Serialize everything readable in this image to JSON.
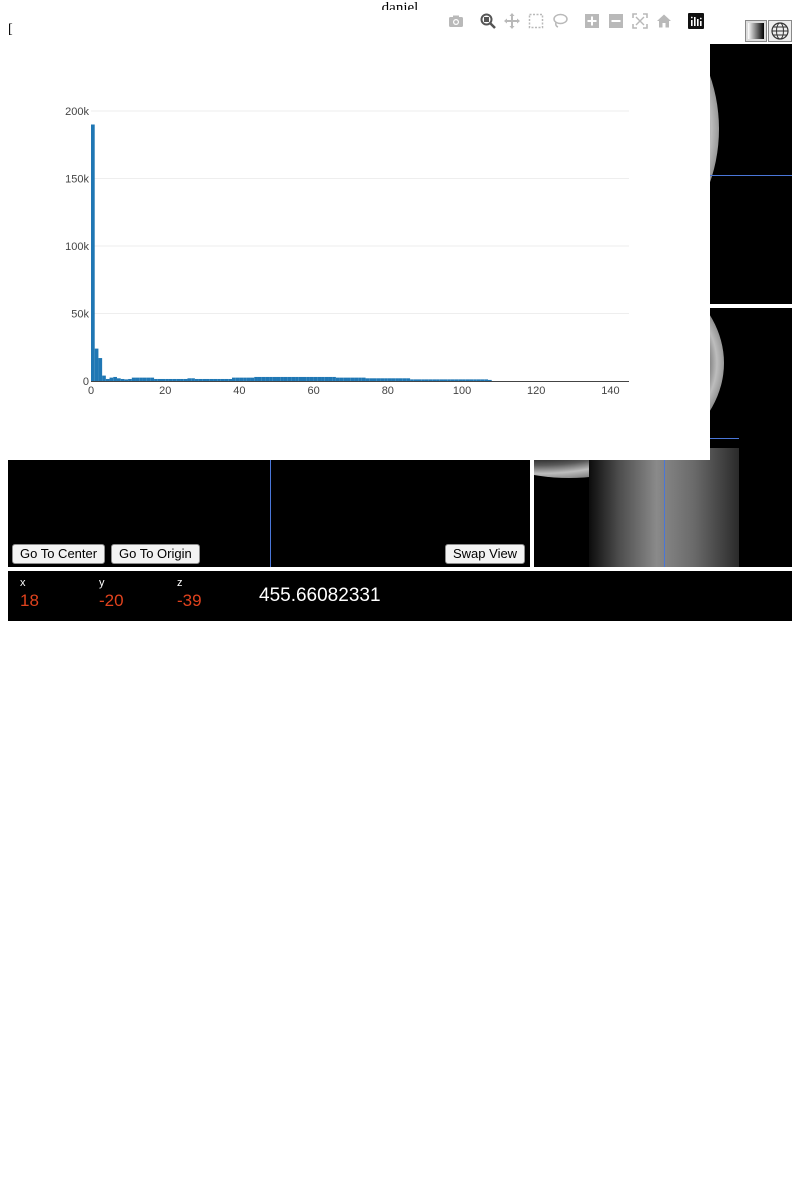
{
  "page": {
    "title": "daniel",
    "stray_mark": "["
  },
  "toolbar": {
    "icons": [
      "camera-icon",
      "zoom-icon",
      "pan-icon",
      "box-select-icon",
      "lasso-select-icon",
      "zoom-in-icon",
      "zoom-out-icon",
      "autoscale-icon",
      "reset-axes-icon",
      "plotly-logo-icon"
    ]
  },
  "viewer_controls": {
    "icons": [
      "contrast-icon",
      "globe-icon"
    ]
  },
  "buttons": {
    "go_to_center": "Go To Center",
    "go_to_origin": "Go To Origin",
    "swap_view": "Swap View"
  },
  "coordinates": {
    "x_label": "x",
    "x_value": "18",
    "y_label": "y",
    "y_value": "-20",
    "z_label": "z",
    "z_value": "-39",
    "intensity": "455.66082331"
  },
  "colors": {
    "bar": "#1f77b4",
    "crosshair": "#4a76d8",
    "coord_value": "#e0421d",
    "grid": "#eeeeee"
  },
  "chart_data": {
    "type": "bar",
    "title": "",
    "xlabel": "",
    "ylabel": "",
    "xlim": [
      0,
      145
    ],
    "ylim": [
      0,
      200000
    ],
    "x_ticks": [
      0,
      20,
      40,
      60,
      80,
      100,
      120,
      140
    ],
    "x_tick_labels": [
      "0",
      "20",
      "40",
      "60",
      "80",
      "100",
      "120",
      "140"
    ],
    "y_ticks": [
      0,
      50000,
      100000,
      150000,
      200000
    ],
    "y_tick_labels": [
      "0",
      "50k",
      "100k",
      "150k",
      "200k"
    ],
    "grid": true,
    "bin_width": 1,
    "bin_starts": [
      0,
      1,
      2,
      3,
      4,
      5,
      6,
      7,
      8,
      9,
      10,
      11,
      12,
      13,
      14,
      15,
      16,
      17,
      18,
      19,
      20,
      21,
      22,
      23,
      24,
      25,
      26,
      27,
      28,
      29,
      30,
      31,
      32,
      33,
      34,
      35,
      36,
      37,
      38,
      39,
      40,
      41,
      42,
      43,
      44,
      45,
      46,
      47,
      48,
      49,
      50,
      51,
      52,
      53,
      54,
      55,
      56,
      57,
      58,
      59,
      60,
      61,
      62,
      63,
      64,
      65,
      66,
      67,
      68,
      69,
      70,
      71,
      72,
      73,
      74,
      75,
      76,
      77,
      78,
      79,
      80,
      81,
      82,
      83,
      84,
      85,
      86,
      87,
      88,
      89,
      90,
      91,
      92,
      93,
      94,
      95,
      96,
      97,
      98,
      99,
      100,
      101,
      102,
      103,
      104,
      105,
      106,
      107
    ],
    "values": [
      190000,
      24000,
      17000,
      4000,
      1500,
      2500,
      3000,
      2000,
      1500,
      1200,
      1500,
      2500,
      2500,
      2500,
      2500,
      2500,
      2500,
      1500,
      1500,
      1500,
      1500,
      1500,
      1500,
      1500,
      1500,
      1500,
      2000,
      2000,
      1500,
      1500,
      1500,
      1500,
      1500,
      1500,
      1500,
      1500,
      1500,
      1500,
      2500,
      2500,
      2500,
      2500,
      2500,
      2500,
      3000,
      3000,
      3000,
      3000,
      3000,
      3000,
      3000,
      3000,
      3000,
      3000,
      3000,
      3000,
      3000,
      3000,
      3000,
      3000,
      3000,
      3000,
      3000,
      3000,
      3000,
      3000,
      2500,
      2500,
      2500,
      2500,
      2500,
      2500,
      2500,
      2500,
      2000,
      2000,
      2000,
      2000,
      2000,
      2000,
      2000,
      2000,
      2000,
      2000,
      2000,
      2000,
      1200,
      1200,
      1200,
      1200,
      1200,
      1200,
      1200,
      1200,
      1200,
      1200,
      1200,
      1200,
      1200,
      1200,
      1200,
      1200,
      1200,
      1200,
      1200,
      1200,
      1200,
      800
    ]
  }
}
